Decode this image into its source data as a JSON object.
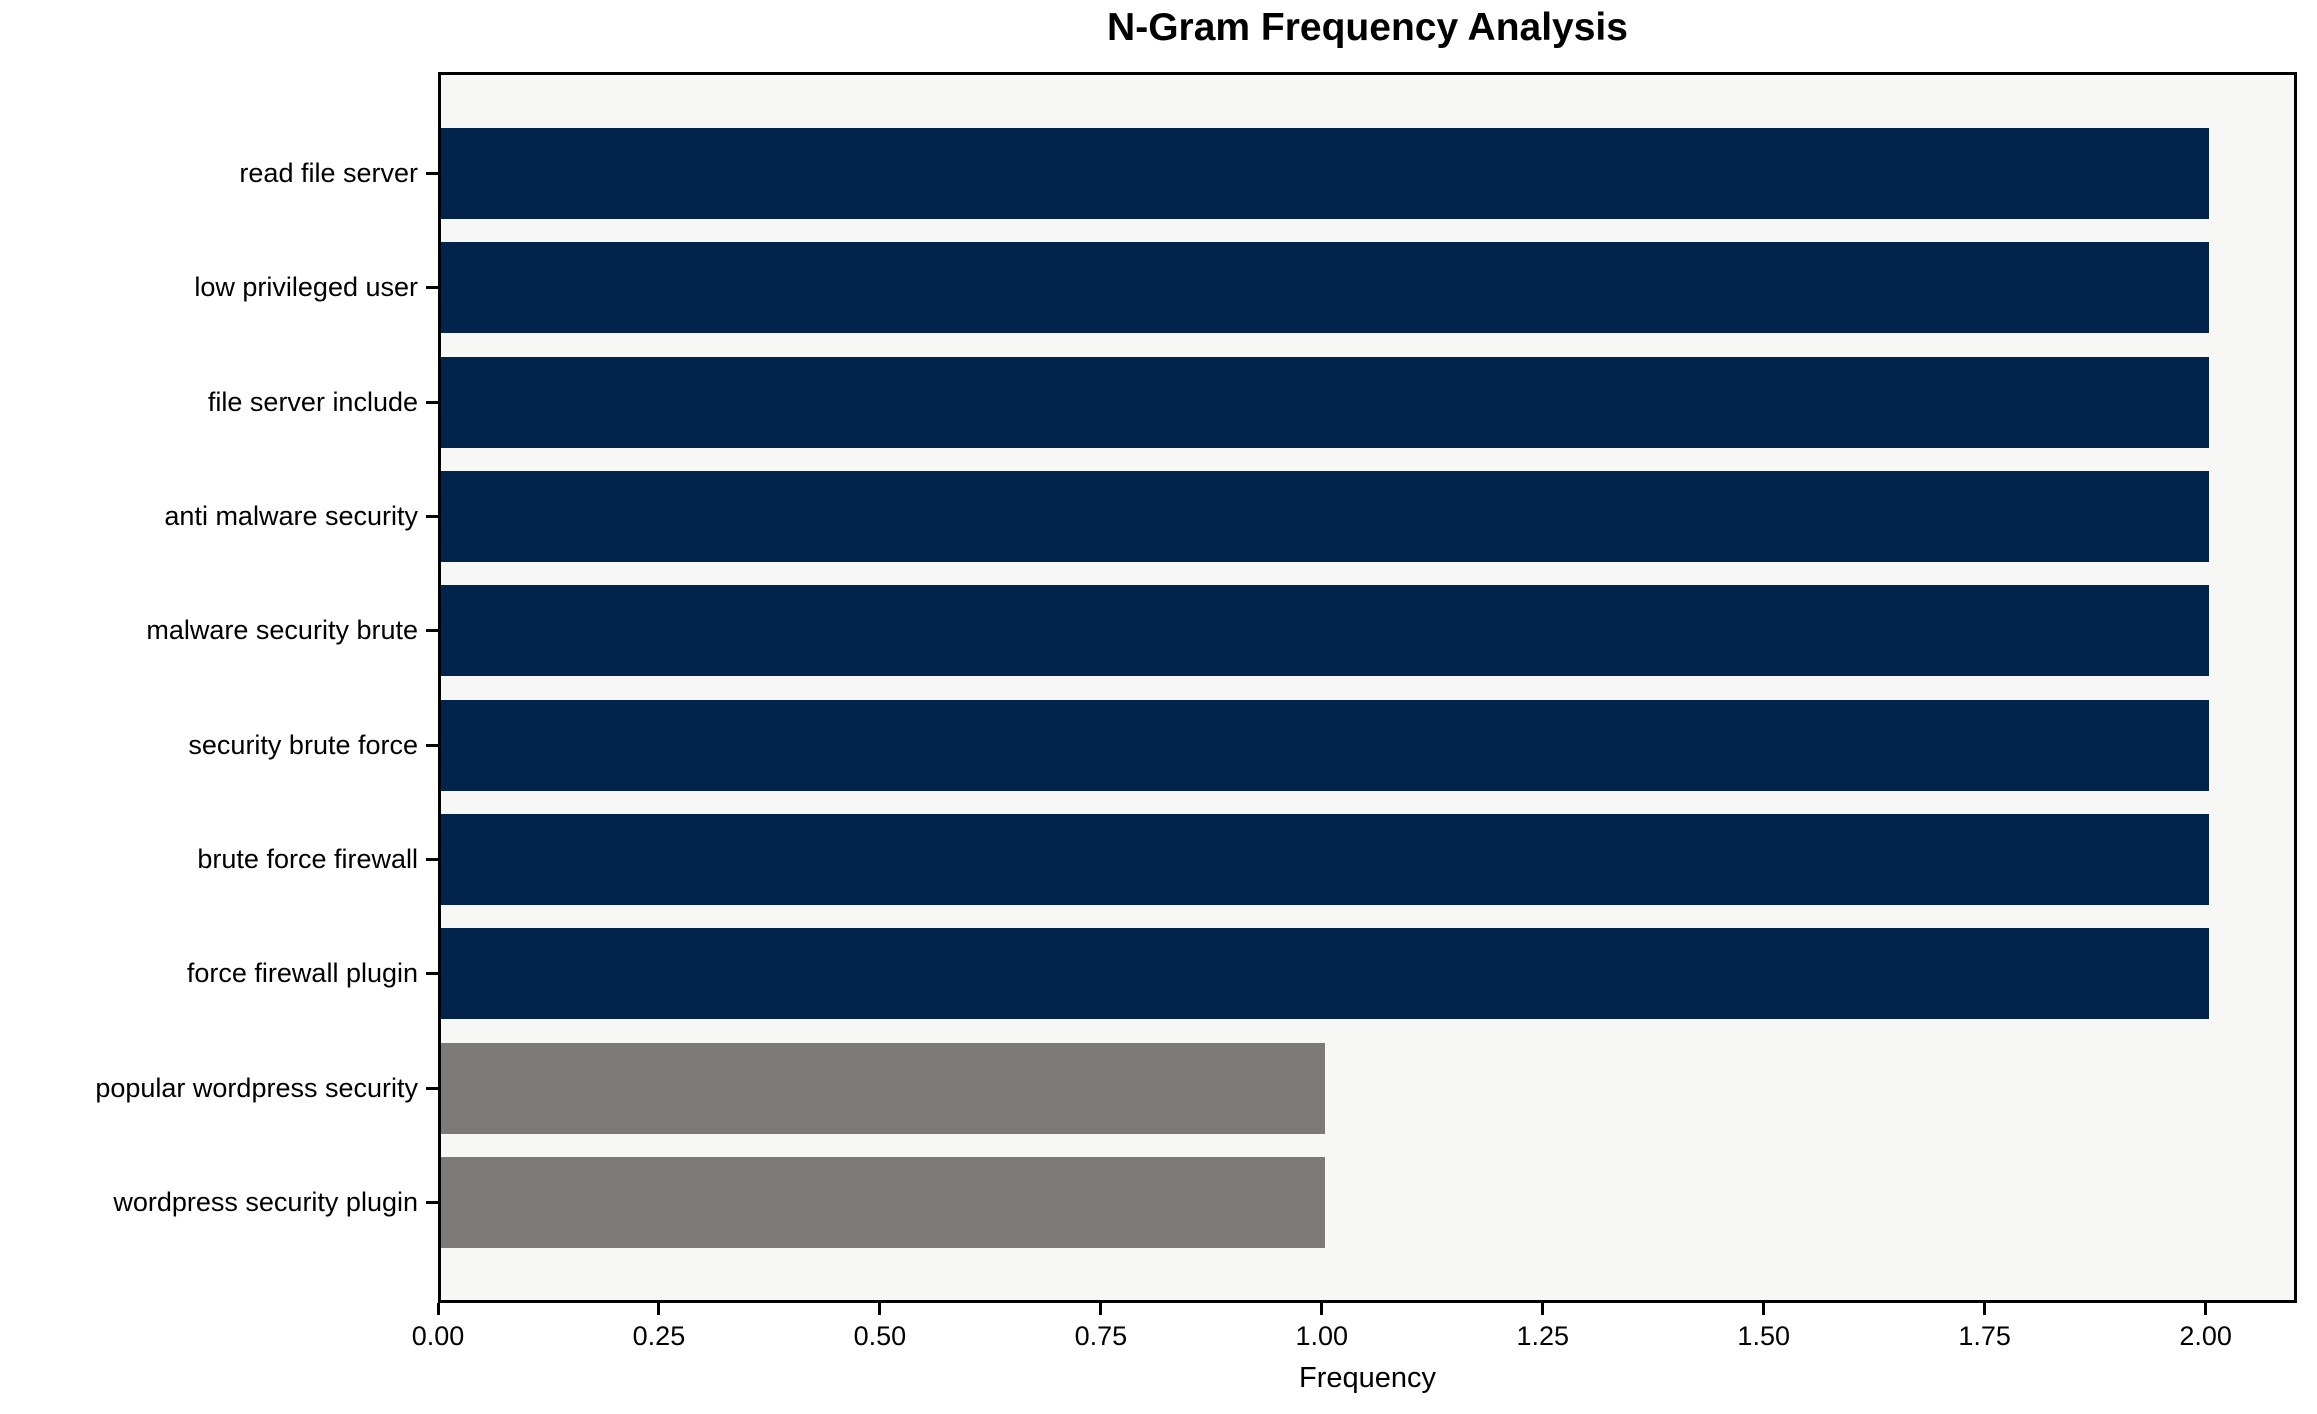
{
  "chart_data": {
    "type": "bar",
    "orientation": "horizontal",
    "title": "N-Gram Frequency Analysis",
    "xlabel": "Frequency",
    "ylabel": "",
    "categories": [
      "read file server",
      "low privileged user",
      "file server include",
      "anti malware security",
      "malware security brute",
      "security brute force",
      "brute force firewall",
      "force firewall plugin",
      "popular wordpress security",
      "wordpress security plugin"
    ],
    "values": [
      2,
      2,
      2,
      2,
      2,
      2,
      2,
      2,
      1,
      1
    ],
    "bar_colors": [
      "#02234c",
      "#02234c",
      "#02234c",
      "#02234c",
      "#02234c",
      "#02234c",
      "#02234c",
      "#02234c",
      "#7b7a77",
      "#7b7a77"
    ],
    "xlim": [
      0,
      2.1
    ],
    "xtick_labels": [
      "0.00",
      "0.25",
      "0.50",
      "0.75",
      "1.00",
      "1.25",
      "1.50",
      "1.75",
      "2.00"
    ],
    "xtick_values": [
      0,
      0.25,
      0.5,
      0.75,
      1.0,
      1.25,
      1.5,
      1.75,
      2.0
    ],
    "grid": false,
    "legend": null,
    "colors": {
      "bar_high": "#02234c",
      "bar_low": "#7b7a77",
      "plot_background": "#f7f7f5",
      "page_background": "#ffffff",
      "axis": "#000000",
      "text": "#000000"
    }
  }
}
